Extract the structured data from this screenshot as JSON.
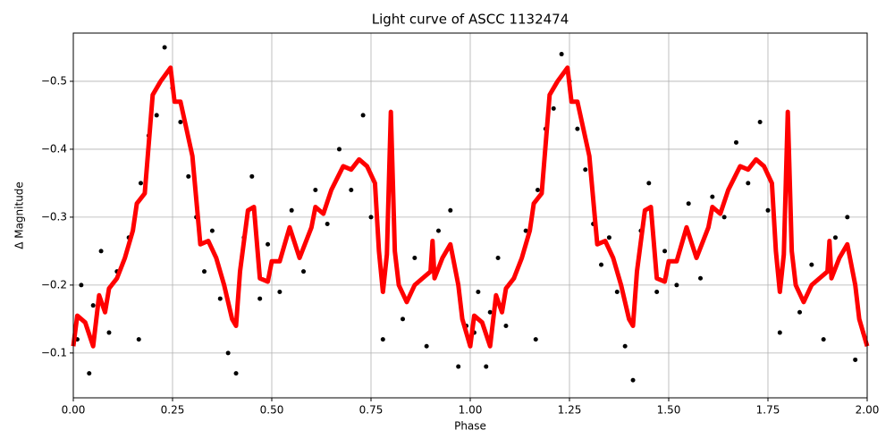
{
  "chart_data": {
    "type": "scatter",
    "title": "Light curve of ASCC 1132474",
    "xlabel": "Phase",
    "ylabel": "Δ Magnitude",
    "xlim": [
      0,
      2
    ],
    "ylim": [
      -0.034,
      -0.571
    ],
    "grid": true,
    "xticks": [
      {
        "value": 0,
        "label": "0.00"
      },
      {
        "value": 0.25,
        "label": "0.25"
      },
      {
        "value": 0.5,
        "label": "0.50"
      },
      {
        "value": 0.75,
        "label": "0.75"
      },
      {
        "value": 1,
        "label": "1.00"
      },
      {
        "value": 1.25,
        "label": "1.25"
      },
      {
        "value": 1.5,
        "label": "1.50"
      },
      {
        "value": 1.75,
        "label": "1.75"
      },
      {
        "value": 2,
        "label": "2.00"
      }
    ],
    "yticks": [
      {
        "value": -0.5,
        "label": "−0.5"
      },
      {
        "value": -0.4,
        "label": "−0.4"
      },
      {
        "value": -0.3,
        "label": "−0.3"
      },
      {
        "value": -0.2,
        "label": "−0.2"
      },
      {
        "value": -0.1,
        "label": "−0.1"
      }
    ],
    "series": [
      {
        "color": "#000000",
        "x": [
          0.01,
          0.02,
          0.04,
          0.05,
          0.07,
          0.09,
          0.11,
          0.14,
          0.165,
          0.17,
          0.19,
          0.21,
          0.23,
          0.25,
          0.27,
          0.29,
          0.31,
          0.33,
          0.35,
          0.37,
          0.39,
          0.41,
          0.43,
          0.45,
          0.47,
          0.49,
          0.52,
          0.55,
          0.58,
          0.61,
          0.64,
          0.67,
          0.7,
          0.73,
          0.75,
          0.78,
          0.8,
          0.83,
          0.86,
          0.89,
          0.92,
          0.95,
          0.97,
          0.99,
          1.01,
          1.02,
          1.04,
          1.05,
          1.07,
          1.09,
          1.11,
          1.14,
          1.165,
          1.17,
          1.19,
          1.21,
          1.23,
          1.25,
          1.27,
          1.29,
          1.31,
          1.33,
          1.35,
          1.37,
          1.39,
          1.41,
          1.43,
          1.45,
          1.47,
          1.49,
          1.52,
          1.55,
          1.58,
          1.61,
          1.64,
          1.67,
          1.7,
          1.73,
          1.75,
          1.78,
          1.8,
          1.83,
          1.86,
          1.89,
          1.92,
          1.95,
          1.97,
          1.99
        ],
        "values": [
          -0.12,
          -0.2,
          -0.07,
          -0.17,
          -0.25,
          -0.13,
          -0.22,
          -0.27,
          -0.12,
          -0.35,
          -0.42,
          -0.45,
          -0.55,
          -0.49,
          -0.44,
          -0.36,
          -0.3,
          -0.22,
          -0.28,
          -0.18,
          -0.1,
          -0.07,
          -0.27,
          -0.36,
          -0.18,
          -0.26,
          -0.19,
          -0.31,
          -0.22,
          -0.34,
          -0.29,
          -0.4,
          -0.34,
          -0.45,
          -0.3,
          -0.12,
          -0.42,
          -0.15,
          -0.24,
          -0.11,
          -0.28,
          -0.31,
          -0.08,
          -0.14,
          -0.13,
          -0.19,
          -0.08,
          -0.16,
          -0.24,
          -0.14,
          -0.21,
          -0.28,
          -0.12,
          -0.34,
          -0.43,
          -0.46,
          -0.54,
          -0.5,
          -0.43,
          -0.37,
          -0.29,
          -0.23,
          -0.27,
          -0.19,
          -0.11,
          -0.06,
          -0.28,
          -0.35,
          -0.19,
          -0.25,
          -0.2,
          -0.32,
          -0.21,
          -0.33,
          -0.3,
          -0.41,
          -0.35,
          -0.44,
          -0.31,
          -0.13,
          -0.41,
          -0.16,
          -0.23,
          -0.12,
          -0.27,
          -0.3,
          -0.09,
          -0.13
        ]
      },
      {
        "type": "line",
        "color": "#ff0000",
        "x": [
          0.0,
          0.01,
          0.03,
          0.05,
          0.065,
          0.08,
          0.09,
          0.11,
          0.13,
          0.15,
          0.16,
          0.18,
          0.2,
          0.22,
          0.245,
          0.255,
          0.27,
          0.3,
          0.32,
          0.34,
          0.36,
          0.38,
          0.4,
          0.41,
          0.42,
          0.44,
          0.455,
          0.47,
          0.49,
          0.5,
          0.52,
          0.545,
          0.57,
          0.6,
          0.61,
          0.63,
          0.65,
          0.68,
          0.7,
          0.72,
          0.74,
          0.76,
          0.77,
          0.78,
          0.79,
          0.8,
          0.81,
          0.82,
          0.84,
          0.86,
          0.88,
          0.9,
          0.905,
          0.91,
          0.93,
          0.95,
          0.97,
          0.98,
          1.0,
          1.01,
          1.03,
          1.05,
          1.065,
          1.08,
          1.09,
          1.11,
          1.13,
          1.15,
          1.16,
          1.18,
          1.2,
          1.22,
          1.245,
          1.255,
          1.27,
          1.3,
          1.32,
          1.34,
          1.36,
          1.38,
          1.4,
          1.41,
          1.42,
          1.44,
          1.455,
          1.47,
          1.49,
          1.5,
          1.52,
          1.545,
          1.57,
          1.6,
          1.61,
          1.63,
          1.65,
          1.68,
          1.7,
          1.72,
          1.74,
          1.76,
          1.77,
          1.78,
          1.79,
          1.8,
          1.81,
          1.82,
          1.84,
          1.86,
          1.88,
          1.9,
          1.905,
          1.91,
          1.93,
          1.95,
          1.97,
          1.98,
          2.0
        ],
        "values": [
          -0.11,
          -0.155,
          -0.145,
          -0.11,
          -0.185,
          -0.16,
          -0.195,
          -0.21,
          -0.24,
          -0.28,
          -0.32,
          -0.335,
          -0.48,
          -0.5,
          -0.52,
          -0.47,
          -0.47,
          -0.39,
          -0.26,
          -0.265,
          -0.24,
          -0.2,
          -0.15,
          -0.14,
          -0.22,
          -0.31,
          -0.315,
          -0.21,
          -0.205,
          -0.235,
          -0.235,
          -0.285,
          -0.24,
          -0.285,
          -0.315,
          -0.305,
          -0.34,
          -0.375,
          -0.37,
          -0.385,
          -0.375,
          -0.35,
          -0.25,
          -0.19,
          -0.245,
          -0.455,
          -0.25,
          -0.2,
          -0.175,
          -0.2,
          -0.21,
          -0.22,
          -0.265,
          -0.21,
          -0.24,
          -0.26,
          -0.2,
          -0.15,
          -0.11,
          -0.155,
          -0.145,
          -0.11,
          -0.185,
          -0.16,
          -0.195,
          -0.21,
          -0.24,
          -0.28,
          -0.32,
          -0.335,
          -0.48,
          -0.5,
          -0.52,
          -0.47,
          -0.47,
          -0.39,
          -0.26,
          -0.265,
          -0.24,
          -0.2,
          -0.15,
          -0.14,
          -0.22,
          -0.31,
          -0.315,
          -0.21,
          -0.205,
          -0.235,
          -0.235,
          -0.285,
          -0.24,
          -0.285,
          -0.315,
          -0.305,
          -0.34,
          -0.375,
          -0.37,
          -0.385,
          -0.375,
          -0.35,
          -0.25,
          -0.19,
          -0.245,
          -0.455,
          -0.25,
          -0.2,
          -0.175,
          -0.2,
          -0.21,
          -0.22,
          -0.265,
          -0.21,
          -0.24,
          -0.26,
          -0.2,
          -0.15,
          -0.11
        ]
      }
    ]
  }
}
